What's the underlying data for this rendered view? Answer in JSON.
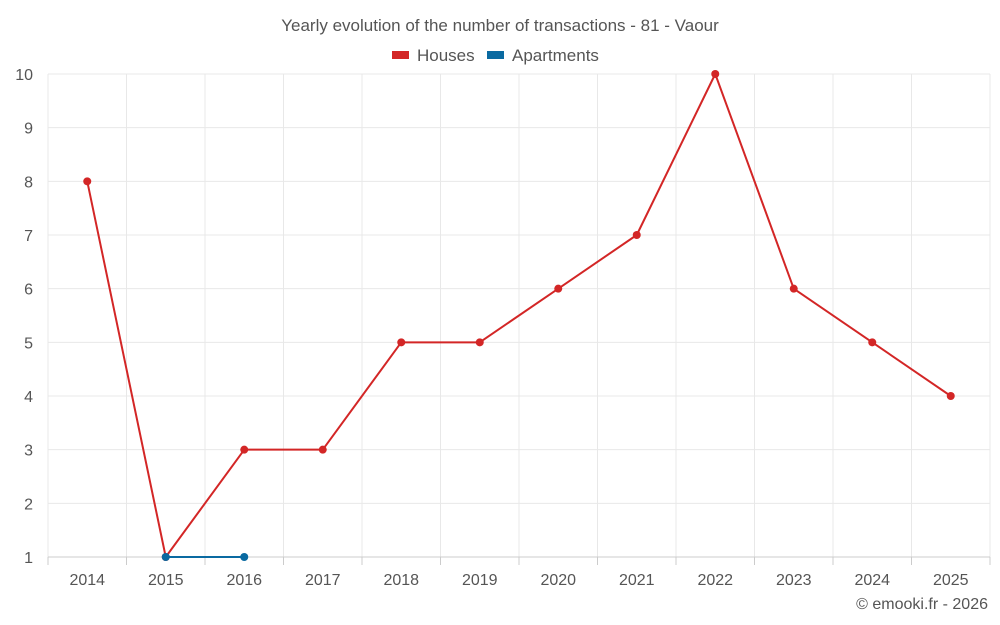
{
  "chart_data": {
    "type": "line",
    "title": "Yearly evolution of the number of transactions - 81 - Vaour",
    "categories": [
      "2014",
      "2015",
      "2016",
      "2017",
      "2018",
      "2019",
      "2020",
      "2021",
      "2022",
      "2023",
      "2024",
      "2025"
    ],
    "ylim": [
      1,
      10
    ],
    "yticks": [
      1,
      2,
      3,
      4,
      5,
      6,
      7,
      8,
      9,
      10
    ],
    "grid": true,
    "legend_position": "top-center",
    "series": [
      {
        "name": "Houses",
        "color": "#d32626",
        "values": [
          8,
          1,
          3,
          3,
          5,
          5,
          6,
          7,
          10,
          6,
          5,
          4
        ]
      },
      {
        "name": "Apartments",
        "color": "#0a6aa1",
        "values": [
          null,
          1,
          1,
          null,
          null,
          null,
          null,
          null,
          null,
          null,
          null,
          null
        ]
      }
    ]
  },
  "credit": "© emooki.fr - 2026"
}
